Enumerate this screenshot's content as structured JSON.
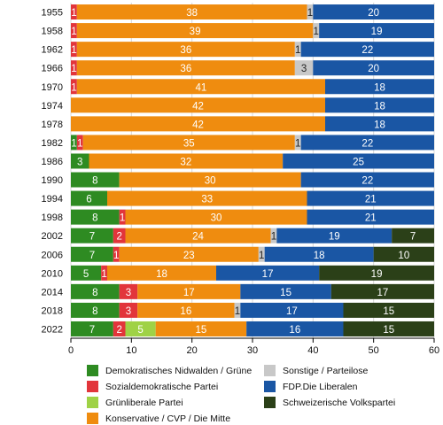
{
  "chart_data": {
    "type": "bar",
    "orientation": "horizontal",
    "stacked": true,
    "categories": [
      "1955",
      "1958",
      "1962",
      "1966",
      "1970",
      "1974",
      "1978",
      "1982",
      "1986",
      "1990",
      "1994",
      "1998",
      "2002",
      "2006",
      "2010",
      "2014",
      "2018",
      "2022"
    ],
    "series": [
      {
        "name": "Demokratisches Nidwalden / Grüne",
        "color": "#2e8b22",
        "values": [
          0,
          0,
          0,
          0,
          0,
          0,
          0,
          1,
          3,
          8,
          6,
          8,
          7,
          7,
          5,
          8,
          8,
          7
        ]
      },
      {
        "name": "Sozialdemokratische Partei",
        "color": "#e2353b",
        "values": [
          1,
          1,
          1,
          1,
          1,
          0,
          0,
          1,
          0,
          0,
          0,
          1,
          2,
          1,
          1,
          3,
          3,
          2
        ]
      },
      {
        "name": "Grünliberale Partei",
        "color": "#9fd246",
        "values": [
          0,
          0,
          0,
          0,
          0,
          0,
          0,
          0,
          0,
          0,
          0,
          0,
          0,
          0,
          0,
          0,
          0,
          5
        ]
      },
      {
        "name": "Konservative / CVP / Die Mitte",
        "color": "#ef8c0f",
        "values": [
          38,
          39,
          36,
          36,
          41,
          42,
          42,
          35,
          32,
          30,
          33,
          30,
          24,
          23,
          18,
          17,
          16,
          15
        ]
      },
      {
        "name": "Sonstige / Parteilose",
        "color": "#c8c8c8",
        "values": [
          1,
          1,
          1,
          3,
          0,
          0,
          0,
          1,
          0,
          0,
          0,
          0,
          1,
          1,
          0,
          0,
          1,
          0
        ]
      },
      {
        "name": "FDP.Die Liberalen",
        "color": "#1a56a4",
        "values": [
          20,
          19,
          22,
          20,
          18,
          18,
          18,
          22,
          25,
          22,
          21,
          21,
          19,
          18,
          17,
          15,
          17,
          16
        ]
      },
      {
        "name": "Schweizerische Volkspartei",
        "color": "#2b4018",
        "values": [
          0,
          0,
          0,
          0,
          0,
          0,
          0,
          0,
          0,
          0,
          0,
          0,
          7,
          10,
          19,
          17,
          15,
          15
        ]
      }
    ],
    "xlim": [
      0,
      60
    ],
    "xticks": [
      0,
      10,
      20,
      30,
      40,
      50,
      60
    ],
    "grid": true,
    "legend": "bottom"
  }
}
